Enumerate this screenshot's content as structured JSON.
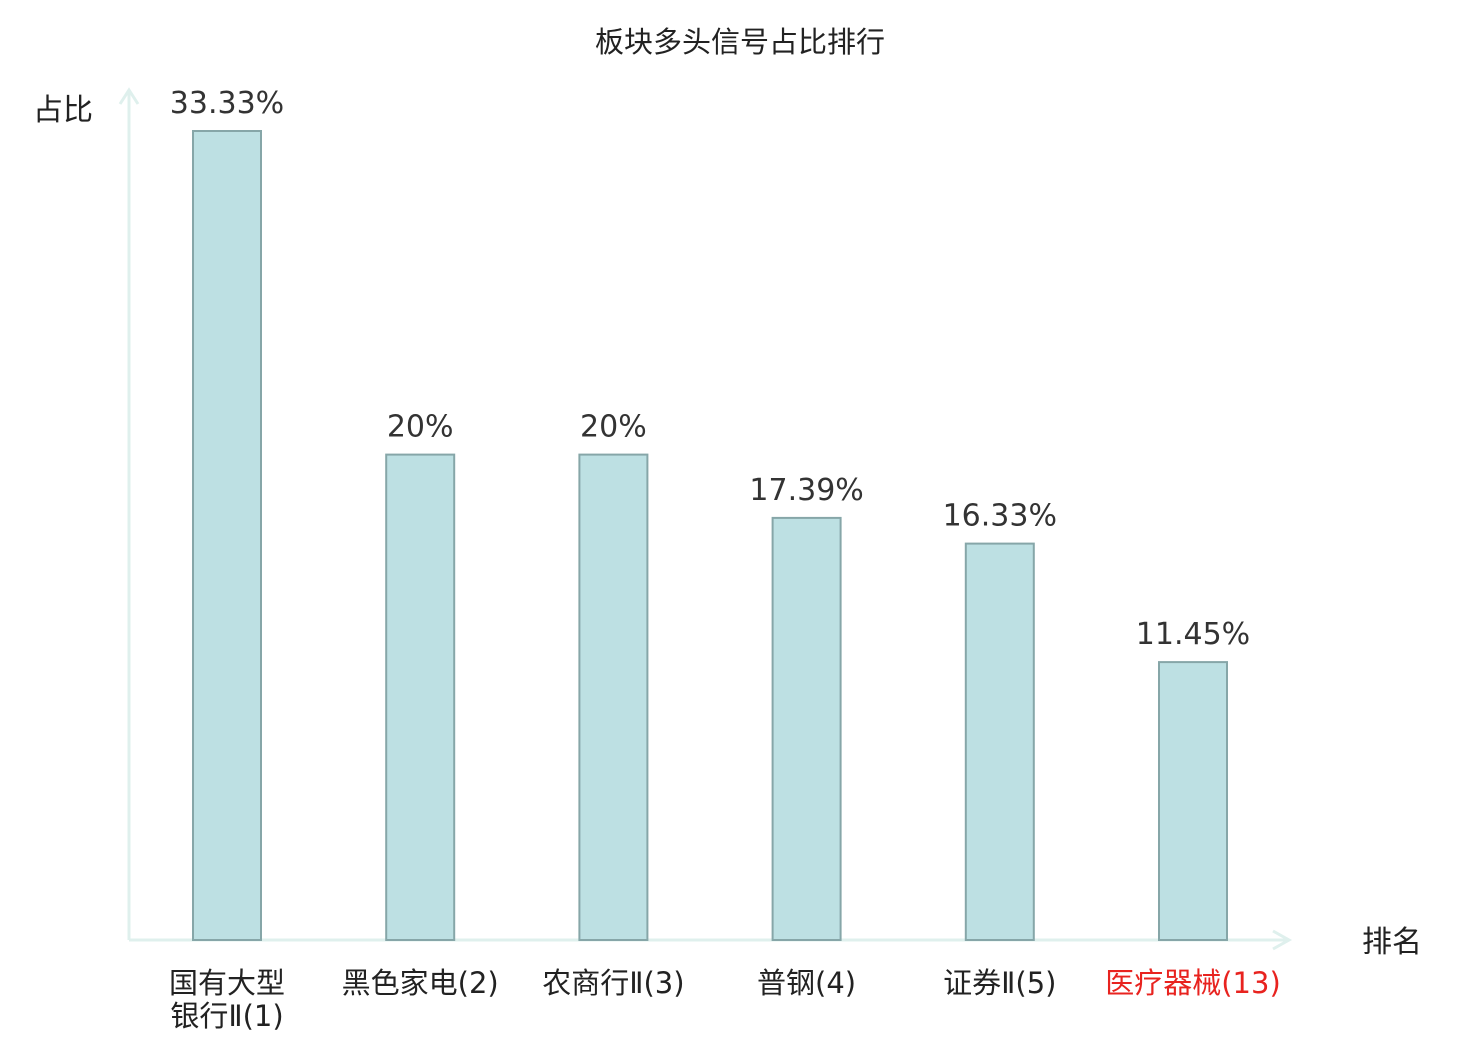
{
  "chart_data": {
    "type": "bar",
    "title": "板块多头信号占比排行",
    "ylabel": "占比",
    "xlabel": "排名",
    "ylim": [
      0,
      35
    ],
    "grid": false,
    "legend": "none",
    "categories": [
      {
        "lines": [
          "国有大型",
          "银行Ⅱ(1)"
        ],
        "name": "国有大型银行Ⅱ",
        "rank": "(1)",
        "highlight": false
      },
      {
        "lines": [
          "黑色家电(2)"
        ],
        "name": "黑色家电",
        "rank": "(2)",
        "highlight": false
      },
      {
        "lines": [
          "农商行Ⅱ(3)"
        ],
        "name": "农商行Ⅱ",
        "rank": "(3)",
        "highlight": false
      },
      {
        "lines": [
          "普钢(4)"
        ],
        "name": "普钢",
        "rank": "(4)",
        "highlight": false
      },
      {
        "lines": [
          "证券Ⅱ(5)"
        ],
        "name": "证券Ⅱ",
        "rank": "(5)",
        "highlight": false
      },
      {
        "lines": [
          "医疗器械(13)"
        ],
        "name": "医疗器械",
        "rank": "(13)",
        "highlight": true
      }
    ],
    "values": [
      33.33,
      20,
      20,
      17.39,
      16.33,
      11.45
    ],
    "value_labels": [
      "33.33%",
      "20%",
      "20%",
      "17.39%",
      "16.33%",
      "11.45%"
    ],
    "colors": {
      "bar_fill": "#bde0e3",
      "bar_stroke": "#86a6a8",
      "axis": "#dff0ed",
      "label_text": "#333333",
      "highlight_text": "#e8231f"
    }
  }
}
